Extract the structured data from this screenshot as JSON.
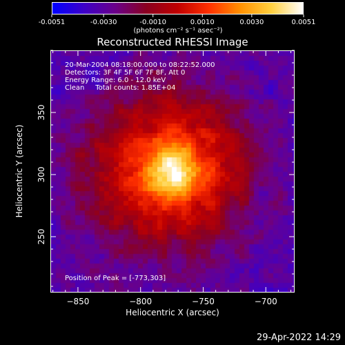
{
  "colorbar": {
    "ticks": [
      "-0.0051",
      "-0.0030",
      "-0.0010",
      "0.0010",
      "0.0030",
      "0.0051"
    ],
    "tick_values": [
      -0.0051,
      -0.003,
      -0.001,
      0.001,
      0.003,
      0.0051
    ],
    "unit_label": "(photons cm⁻² s⁻¹ asec⁻²)",
    "colors": [
      "#0000ff",
      "#3d00c8",
      "#6a008a",
      "#8a0020",
      "#c00000",
      "#ff3000",
      "#ff9000",
      "#ffd040",
      "#ffffff"
    ]
  },
  "title": "Reconstructed RHESSI Image",
  "info": [
    "20-Mar-2004 08:18:00.000 to 08:22:52.000",
    "Detectors: 3F 4F 5F 6F 7F 8F, Att 0",
    "Energy Range: 6.0 - 12.0 keV",
    "Clean     Total counts: 1.85E+04"
  ],
  "peak_text": "Position of Peak = [-773,303]",
  "chart_data": {
    "type": "heatmap",
    "title": "Reconstructed RHESSI Image",
    "xlabel": "Heliocentric X (arcsec)",
    "ylabel": "Heliocentric Y (arcsec)",
    "xlim": [
      -872,
      -677
    ],
    "ylim": [
      205,
      400
    ],
    "x_ticks": [
      -850,
      -800,
      -750,
      -700
    ],
    "x_tick_labels": [
      "−850",
      "−800",
      "−750",
      "−700"
    ],
    "y_ticks": [
      250,
      300,
      350
    ],
    "y_tick_labels": [
      "250",
      "300",
      "350"
    ],
    "peak": [
      -773,
      303
    ],
    "value_range": [
      -0.0051,
      0.0051
    ],
    "emission_center": [
      -778,
      305
    ],
    "colormap": "blue-purple-red-yellow-white"
  },
  "footer": "29-Apr-2022 14:29"
}
